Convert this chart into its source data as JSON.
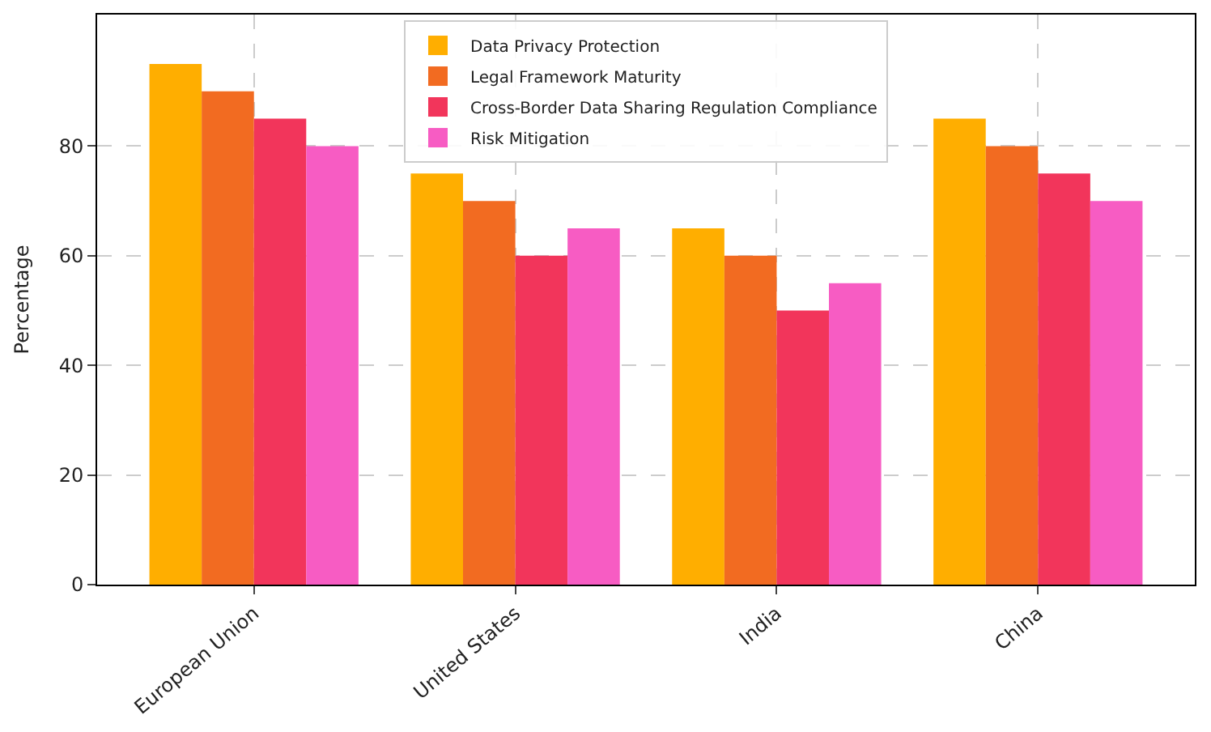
{
  "chart_data": {
    "type": "bar",
    "ylabel": "Percentage",
    "categories": [
      "European Union",
      "United States",
      "India",
      "China"
    ],
    "series": [
      {
        "name": "Data Privacy Protection",
        "color": "#ffae00",
        "values": [
          95,
          75,
          65,
          85
        ]
      },
      {
        "name": "Legal Framework Maturity",
        "color": "#f26b21",
        "values": [
          90,
          70,
          60,
          80
        ]
      },
      {
        "name": "Cross-Border Data Sharing Regulation Compliance",
        "color": "#f2355b",
        "values": [
          85,
          60,
          50,
          75
        ]
      },
      {
        "name": "Risk Mitigation",
        "color": "#f75cc3",
        "values": [
          80,
          65,
          55,
          70
        ]
      }
    ],
    "ylim": [
      0,
      104
    ],
    "yticks": [
      0,
      20,
      40,
      60,
      80
    ],
    "grid": true,
    "legend": "top"
  }
}
